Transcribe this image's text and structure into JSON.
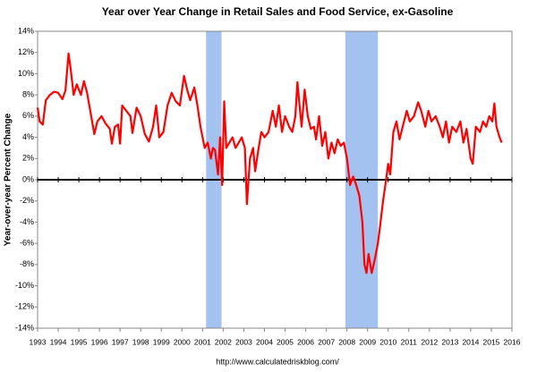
{
  "chart_data": {
    "type": "line",
    "title": "Year over Year Change in Retail Sales and Food Service, ex-Gasoline",
    "y_label": "Year-over-year Percent Change",
    "footer": "http://www.calculatedriskblog.com/",
    "xlim": [
      1993,
      2016
    ],
    "ylim": [
      -14,
      14
    ],
    "xticks": [
      1993,
      1994,
      1995,
      1996,
      1997,
      1998,
      1999,
      2000,
      2001,
      2002,
      2003,
      2004,
      2005,
      2006,
      2007,
      2008,
      2009,
      2010,
      2011,
      2012,
      2013,
      2014,
      2015,
      2016
    ],
    "yticks": [
      {
        "value": -14,
        "label": "-14%"
      },
      {
        "value": -12,
        "label": "-12%"
      },
      {
        "value": -10,
        "label": "-10%"
      },
      {
        "value": -8,
        "label": "-8%"
      },
      {
        "value": -6,
        "label": "-6%"
      },
      {
        "value": -4,
        "label": "-4%"
      },
      {
        "value": -2,
        "label": "-2%"
      },
      {
        "value": 0,
        "label": "0%"
      },
      {
        "value": 2,
        "label": "2%"
      },
      {
        "value": 4,
        "label": "4%"
      },
      {
        "value": 6,
        "label": "6%"
      },
      {
        "value": 8,
        "label": "8%"
      },
      {
        "value": 10,
        "label": "10%"
      },
      {
        "value": 12,
        "label": "12%"
      },
      {
        "value": 14,
        "label": "14%"
      }
    ],
    "recessions": [
      [
        2001.17,
        2001.92
      ],
      [
        2007.92,
        2009.5
      ]
    ],
    "recession_color": "#a4c2f0",
    "series": [
      {
        "name": "Retail Sales ex-Gasoline YoY",
        "color": "#ff0000",
        "x": [
          1993.0,
          1993.1,
          1993.25,
          1993.4,
          1993.6,
          1993.8,
          1994.0,
          1994.2,
          1994.35,
          1994.5,
          1994.6,
          1994.75,
          1994.9,
          1995.1,
          1995.25,
          1995.4,
          1995.6,
          1995.75,
          1995.9,
          1996.1,
          1996.3,
          1996.5,
          1996.6,
          1996.75,
          1996.9,
          1997.0,
          1997.1,
          1997.3,
          1997.5,
          1997.6,
          1997.8,
          1998.0,
          1998.2,
          1998.4,
          1998.6,
          1998.75,
          1998.9,
          1999.1,
          1999.3,
          1999.5,
          1999.7,
          1999.9,
          2000.1,
          2000.25,
          2000.4,
          2000.6,
          2000.75,
          2000.9,
          2001.1,
          2001.25,
          2001.4,
          2001.5,
          2001.6,
          2001.75,
          2001.85,
          2001.95,
          2002.05,
          2002.15,
          2002.3,
          2002.45,
          2002.6,
          2002.75,
          2002.9,
          2003.05,
          2003.15,
          2003.3,
          2003.45,
          2003.55,
          2003.7,
          2003.85,
          2004.0,
          2004.2,
          2004.4,
          2004.55,
          2004.7,
          2004.85,
          2005.0,
          2005.2,
          2005.35,
          2005.5,
          2005.6,
          2005.7,
          2005.8,
          2005.95,
          2006.1,
          2006.25,
          2006.4,
          2006.5,
          2006.65,
          2006.8,
          2006.95,
          2007.1,
          2007.25,
          2007.4,
          2007.55,
          2007.7,
          2007.85,
          2008.0,
          2008.15,
          2008.3,
          2008.45,
          2008.6,
          2008.75,
          2008.85,
          2008.95,
          2009.05,
          2009.2,
          2009.35,
          2009.5,
          2009.6,
          2009.75,
          2009.9,
          2010.0,
          2010.1,
          2010.25,
          2010.4,
          2010.55,
          2010.7,
          2010.9,
          2011.05,
          2011.25,
          2011.45,
          2011.6,
          2011.8,
          2011.95,
          2012.1,
          2012.3,
          2012.5,
          2012.65,
          2012.8,
          2012.95,
          2013.1,
          2013.3,
          2013.5,
          2013.65,
          2013.8,
          2014.0,
          2014.1,
          2014.25,
          2014.45,
          2014.6,
          2014.75,
          2014.9,
          2015.05,
          2015.15,
          2015.25,
          2015.4,
          2015.5
        ],
        "values": [
          6.8,
          5.5,
          5.2,
          7.5,
          8.0,
          8.3,
          8.2,
          7.6,
          8.4,
          11.9,
          10.5,
          8.0,
          9.0,
          8.0,
          9.3,
          8.2,
          6.0,
          4.3,
          5.5,
          6.0,
          5.3,
          4.8,
          3.4,
          5.0,
          5.2,
          3.4,
          7.0,
          6.5,
          6.0,
          4.4,
          6.8,
          6.0,
          4.3,
          3.6,
          5.0,
          7.0,
          4.0,
          4.5,
          7.0,
          8.2,
          7.4,
          7.0,
          9.8,
          8.5,
          7.5,
          8.7,
          7.0,
          5.0,
          3.0,
          3.5,
          2.0,
          3.0,
          2.8,
          0.5,
          4.0,
          -0.5,
          7.4,
          3.0,
          3.5,
          4.0,
          3.0,
          3.5,
          4.0,
          3.0,
          -2.3,
          2.0,
          3.0,
          0.8,
          2.8,
          4.5,
          4.0,
          4.5,
          6.5,
          5.0,
          7.0,
          4.5,
          6.0,
          5.0,
          4.5,
          6.0,
          9.2,
          7.0,
          5.0,
          8.5,
          6.0,
          4.8,
          5.0,
          3.8,
          6.0,
          3.2,
          4.5,
          2.0,
          3.5,
          2.5,
          3.8,
          3.2,
          3.5,
          2.0,
          -0.5,
          0.3,
          -0.5,
          -1.5,
          -4.0,
          -8.0,
          -8.8,
          -7.0,
          -8.8,
          -7.5,
          -6.0,
          -4.5,
          -2.0,
          0.0,
          1.5,
          0.5,
          4.5,
          5.5,
          3.8,
          5.0,
          6.5,
          5.5,
          6.0,
          7.3,
          6.5,
          5.0,
          6.5,
          5.5,
          6.0,
          5.0,
          4.0,
          5.5,
          3.5,
          5.0,
          4.5,
          5.5,
          3.5,
          4.8,
          2.0,
          1.5,
          5.0,
          4.5,
          5.5,
          5.0,
          6.0,
          5.5,
          7.2,
          5.0,
          4.0,
          3.5
        ]
      }
    ]
  }
}
